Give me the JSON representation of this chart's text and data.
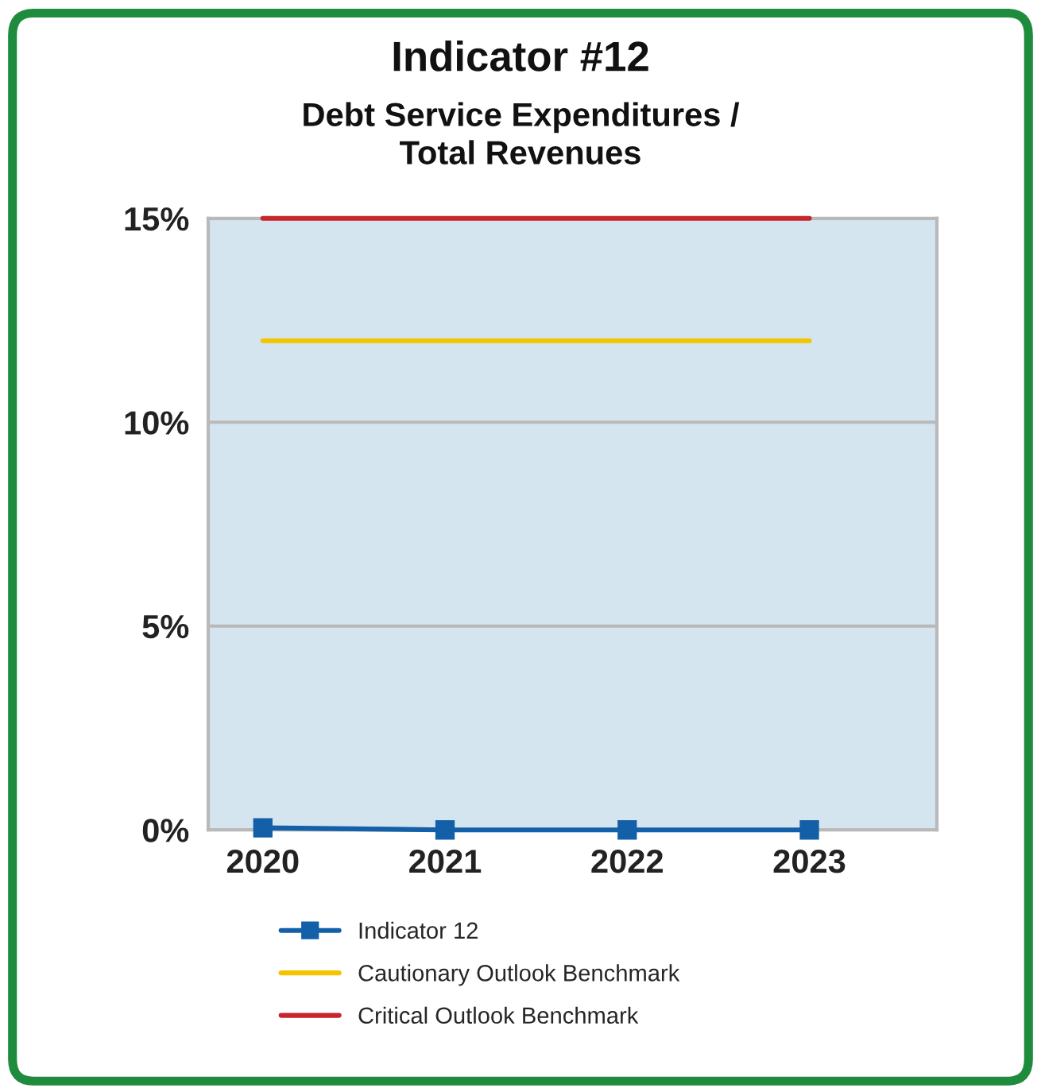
{
  "chart_data": {
    "type": "line",
    "title": "Indicator #12",
    "subtitle": "Debt Service Expenditures /\nTotal Revenues",
    "categories": [
      "2020",
      "2021",
      "2022",
      "2023"
    ],
    "series": [
      {
        "name": "Indicator 12",
        "color": "#135fa8",
        "values": [
          0.05,
          0.0,
          0.0,
          0.0
        ],
        "marker": "square"
      },
      {
        "name": "Cautionary Outlook Benchmark",
        "color": "#f5c400",
        "values": [
          12,
          12,
          12,
          12
        ],
        "marker": "none"
      },
      {
        "name": "Critical Outlook Benchmark",
        "color": "#c8252c",
        "values": [
          15,
          15,
          15,
          15
        ],
        "marker": "none"
      }
    ],
    "ylim": [
      0,
      15
    ],
    "yticks": [
      {
        "value": 0,
        "label": "0%"
      },
      {
        "value": 5,
        "label": "5%"
      },
      {
        "value": 10,
        "label": "10%"
      },
      {
        "value": 15,
        "label": "15%"
      }
    ],
    "grid": "y",
    "legend": "bottom",
    "line_style": "solid"
  }
}
